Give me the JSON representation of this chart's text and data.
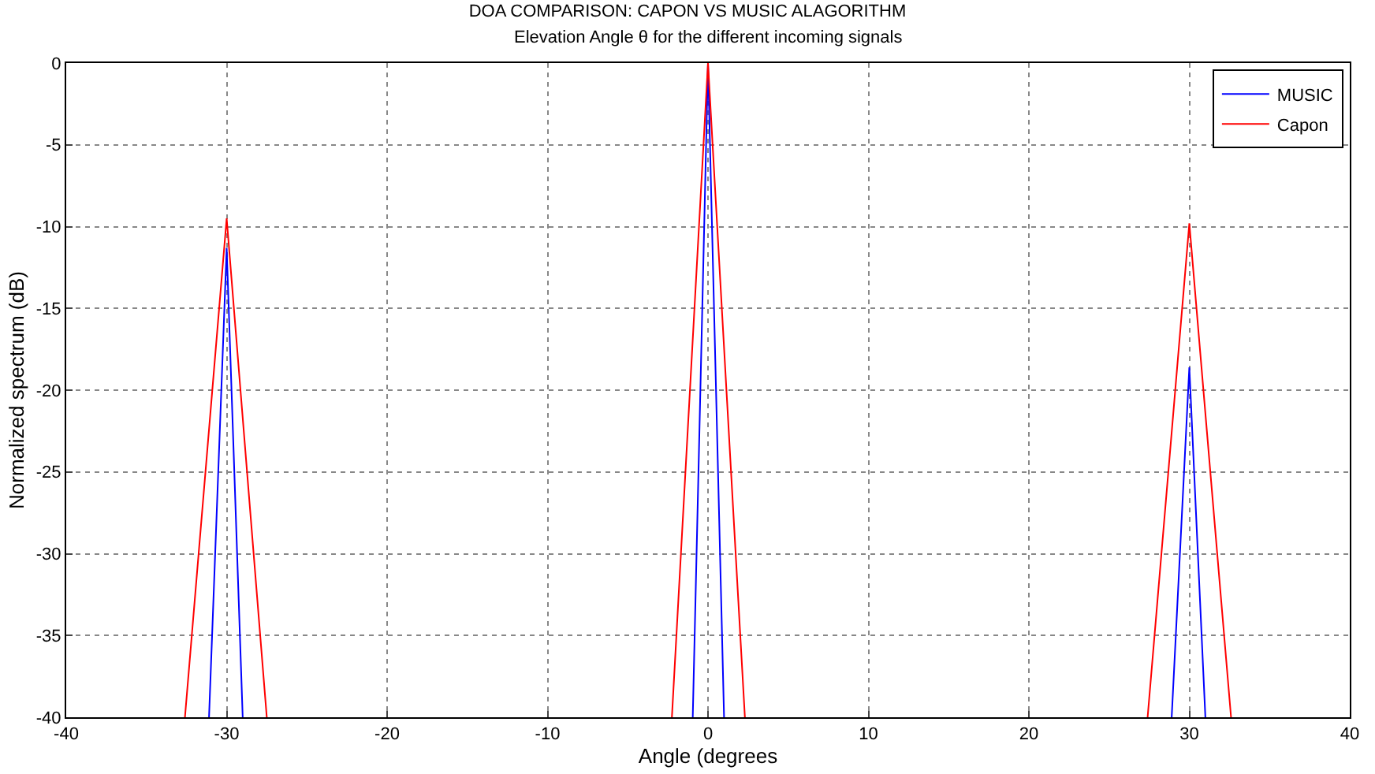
{
  "chart_data": {
    "type": "line",
    "title": "DOA COMPARISON: CAPON VS MUSIC ALAGORITHM",
    "subtitle": "Elevation Angle θ for the different incoming signals",
    "xlabel": "Angle (degrees",
    "ylabel": "Normalized spectrum (dB)",
    "xlim": [
      -40,
      40
    ],
    "xticks": [
      -40,
      -30,
      -20,
      -10,
      0,
      10,
      20,
      30,
      40
    ],
    "ylim": [
      -40,
      0
    ],
    "yticks": [
      -40,
      -35,
      -30,
      -25,
      -20,
      -15,
      -10,
      -5,
      0
    ],
    "grid": true,
    "legend": "top right",
    "line_style": "solid",
    "marker": "none",
    "series": [
      {
        "name": "MUSIC",
        "color": "#0000ff",
        "x": [
          -31.1,
          -30,
          -29,
          -15,
          -0.95,
          0,
          1,
          15,
          28.9,
          30,
          31
        ],
        "values": [
          -40,
          -11.3,
          -40,
          null,
          -40,
          0,
          -40,
          null,
          -40,
          -18.6,
          -40
        ]
      },
      {
        "name": "Capon",
        "color": "#ff0000",
        "x": [
          -32.6,
          -30,
          -27.5,
          -15,
          -2.25,
          0,
          2.3,
          15,
          27.4,
          30,
          32.6
        ],
        "values": [
          -40,
          -9.5,
          -40,
          null,
          -40,
          0,
          -40,
          null,
          -40,
          -9.8,
          -40
        ]
      }
    ]
  }
}
